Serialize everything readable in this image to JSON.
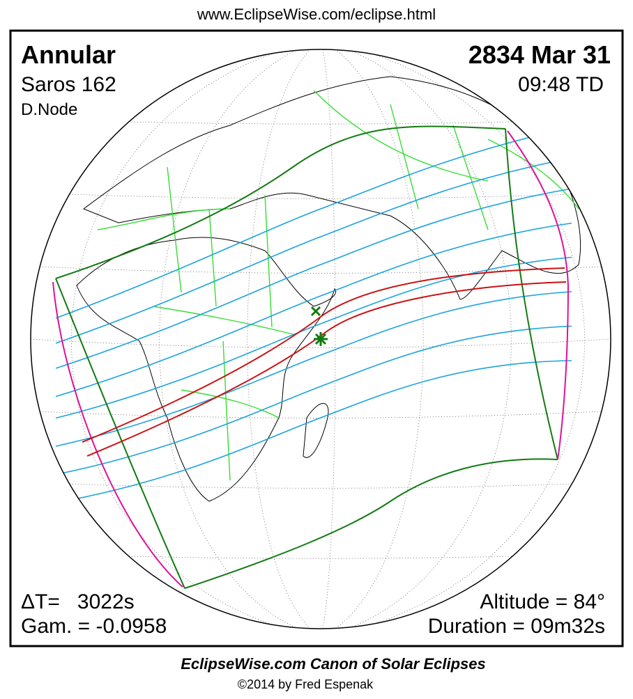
{
  "header": {
    "url": "www.EclipseWise.com/eclipse.html"
  },
  "panel": {
    "eclipse_type": "Annular",
    "date": "2834 Mar 31",
    "saros": "Saros 162",
    "time": "09:48 TD",
    "node": "D.Node",
    "delta_t": "ΔT=   3022s",
    "gamma": "Gam. = -0.0958",
    "altitude": "Altitude = 84°",
    "duration": "Duration = 09m32s"
  },
  "footer": {
    "title": "EclipseWise.com Canon of Solar Eclipses",
    "copyright": "©2014 by Fred Espenak"
  }
}
